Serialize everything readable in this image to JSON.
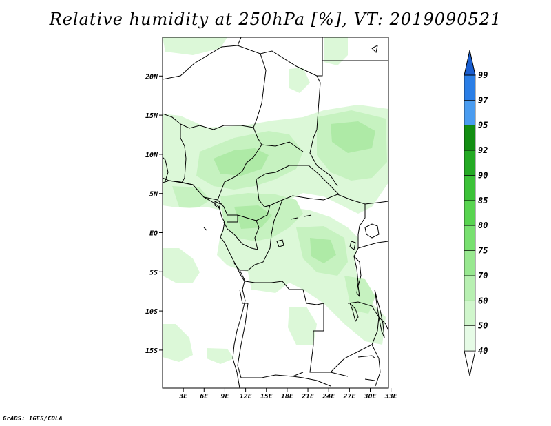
{
  "title": "Relative humidity at 250hPa [%], VT: 2019090521",
  "credit": "GrADS: IGES/COLA",
  "map": {
    "lat_ticks": [
      {
        "lat": 20,
        "label": "20N"
      },
      {
        "lat": 15,
        "label": "15N"
      },
      {
        "lat": 10,
        "label": "10N"
      },
      {
        "lat": 5,
        "label": "5N"
      },
      {
        "lat": 0,
        "label": "EQ"
      },
      {
        "lat": -5,
        "label": "5S"
      },
      {
        "lat": -10,
        "label": "10S"
      },
      {
        "lat": -15,
        "label": "15S"
      }
    ],
    "lon_ticks": [
      {
        "lon": 3,
        "label": "3E"
      },
      {
        "lon": 6,
        "label": "6E"
      },
      {
        "lon": 9,
        "label": "9E"
      },
      {
        "lon": 12,
        "label": "12E"
      },
      {
        "lon": 15,
        "label": "15E"
      },
      {
        "lon": 18,
        "label": "18E"
      },
      {
        "lon": 21,
        "label": "21E"
      },
      {
        "lon": 24,
        "label": "24E"
      },
      {
        "lon": 27,
        "label": "27E"
      },
      {
        "lon": 30,
        "label": "30E"
      },
      {
        "lon": 33,
        "label": "33E"
      }
    ]
  },
  "colorbar": {
    "levels": [
      {
        "label": "40",
        "color": "#e6fbe6"
      },
      {
        "label": "50",
        "color": "#d0f6cc"
      },
      {
        "label": "60",
        "color": "#b8f0b2"
      },
      {
        "label": "70",
        "color": "#98e890"
      },
      {
        "label": "75",
        "color": "#78e070"
      },
      {
        "label": "80",
        "color": "#58d450"
      },
      {
        "label": "85",
        "color": "#3cc238"
      },
      {
        "label": "90",
        "color": "#24aa24"
      },
      {
        "label": "92",
        "color": "#128e12"
      },
      {
        "label": "95",
        "color": "#4a9cf0"
      },
      {
        "label": "97",
        "color": "#2a7ee6"
      },
      {
        "label": "99",
        "color": "#1a5ed0"
      }
    ],
    "under_color": "#ffffff",
    "over_color": "#1a5ed0"
  },
  "colors": {
    "light_green": "#d6f7d2",
    "mid_green": "#b8efb2",
    "border": "#000000"
  }
}
